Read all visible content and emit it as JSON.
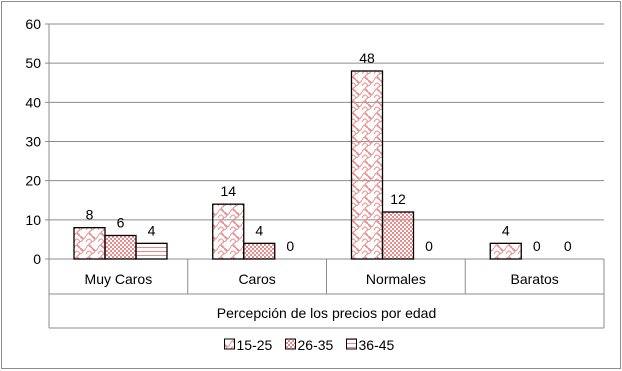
{
  "chart_data": {
    "type": "bar",
    "categories": [
      "Muy Caros",
      "Caros",
      "Normales",
      "Baratos"
    ],
    "series": [
      {
        "name": "15-25",
        "values": [
          8,
          14,
          48,
          4
        ],
        "pattern": "waves"
      },
      {
        "name": "26-35",
        "values": [
          6,
          4,
          12,
          0
        ],
        "pattern": "checker"
      },
      {
        "name": "36-45",
        "values": [
          4,
          0,
          0,
          0
        ],
        "pattern": "hlines"
      }
    ],
    "xlabel": "Percepción de los precios por edad",
    "ylabel": "",
    "ylim": [
      0,
      60
    ],
    "yticks": [
      0,
      10,
      20,
      30,
      40,
      50,
      60
    ],
    "grid": true,
    "legend_position": "bottom",
    "colors": {
      "bar_stroke": "#000000",
      "pattern": "#e88a8a",
      "grid": "#8c8c8c"
    }
  }
}
